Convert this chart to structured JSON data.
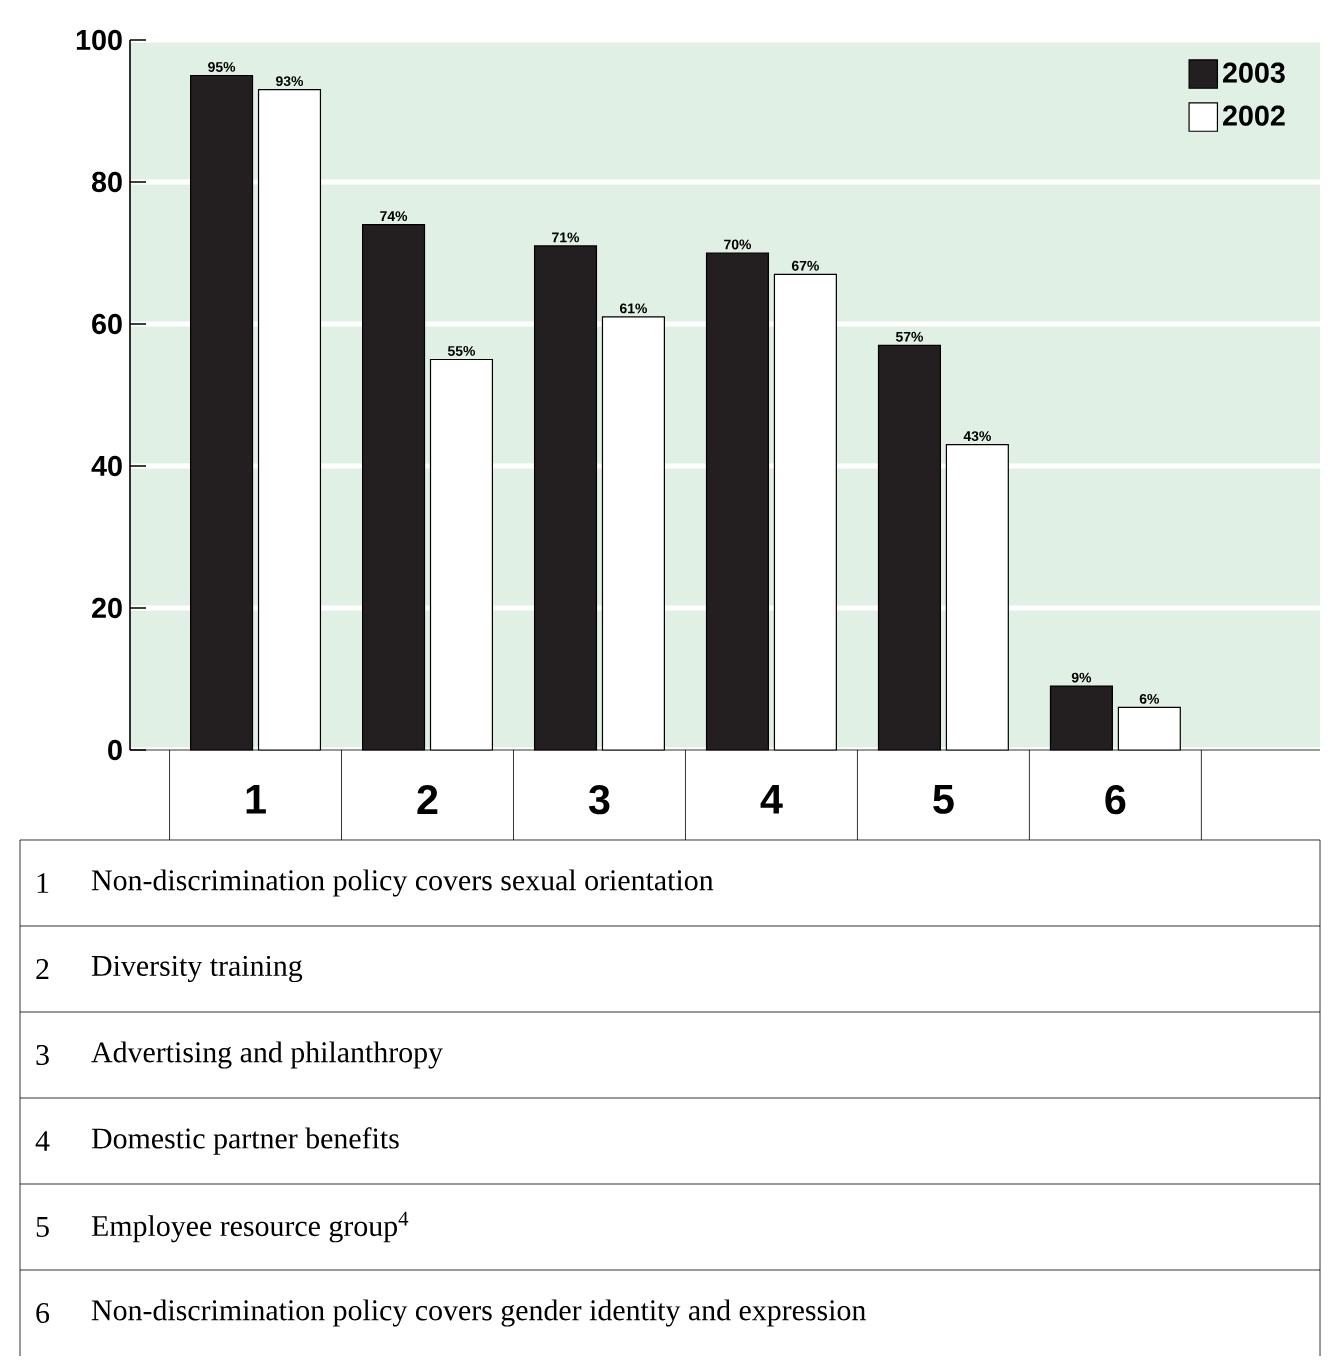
{
  "chart_data": {
    "type": "bar",
    "categories": [
      "1",
      "2",
      "3",
      "4",
      "5",
      "6"
    ],
    "series": [
      {
        "name": "2003",
        "color": "#231f20",
        "values": [
          95,
          74,
          71,
          70,
          57,
          9
        ],
        "value_labels": [
          "95%",
          "74%",
          "71%",
          "70%",
          "57%",
          "9%"
        ]
      },
      {
        "name": "2002",
        "color": "#ffffff",
        "values": [
          93,
          55,
          61,
          67,
          43,
          6
        ],
        "value_labels": [
          "93%",
          "55%",
          "61%",
          "67%",
          "43%",
          "6%"
        ]
      }
    ],
    "ylim": [
      0,
      100
    ],
    "yticks": [
      0,
      20,
      40,
      60,
      80,
      100
    ],
    "grid": "y",
    "legend": "top right",
    "annotations": [
      "Non-discrimination policy covers sexual orientation",
      "Diversity training",
      "Advertising and philanthropy",
      "Domestic partner benefits",
      "Employee resource group$^{4}$",
      "Non-discrimination policy covers gender identity and expression"
    ]
  }
}
